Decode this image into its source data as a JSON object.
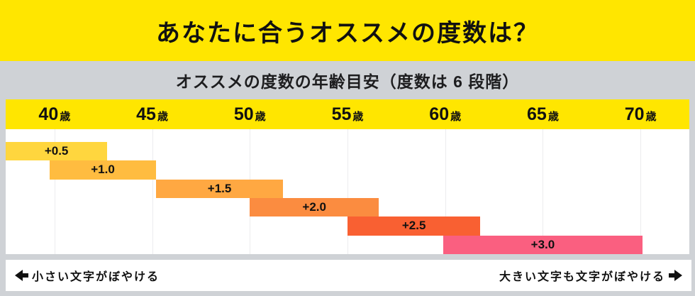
{
  "page": {
    "title": "あなたに合うオススメの度数は？",
    "subtitle": "オススメの度数の年齢目安（度数は 6 段階）",
    "caption_left": "小さい文字がぼやける",
    "caption_right": "大きい文字も文字がぼやける"
  },
  "colors": {
    "accent_yellow": "#ffe600",
    "background_gray": "#cfd2d6",
    "card_white": "#ffffff",
    "text_black": "#111111",
    "gridline": "#ececee"
  },
  "chart_data": {
    "type": "bar",
    "orientation": "horizontal-staggered",
    "title": "オススメの度数の年齢目安（度数は 6 段階）",
    "xlabel": "年齢",
    "x_axis": {
      "unit": "歳",
      "ticks": [
        40,
        45,
        50,
        55,
        60,
        65,
        70
      ],
      "range": [
        37.5,
        72.5
      ],
      "gridlines": true
    },
    "series": [
      {
        "label": "+0.5",
        "start_age": 37.5,
        "end_age": 42.7,
        "color": "#ffd63e"
      },
      {
        "label": "+1.0",
        "start_age": 39.75,
        "end_age": 45.2,
        "color": "#ffbc40"
      },
      {
        "label": "+1.5",
        "start_age": 45.2,
        "end_age": 51.7,
        "color": "#ffa842"
      },
      {
        "label": "+2.0",
        "start_age": 50.0,
        "end_age": 56.6,
        "color": "#fb8c40"
      },
      {
        "label": "+2.5",
        "start_age": 55.0,
        "end_age": 61.8,
        "color": "#f96032"
      },
      {
        "label": "+3.0",
        "start_age": 59.9,
        "end_age": 70.1,
        "color": "#fa5f80"
      }
    ],
    "annotations": {
      "left": "←小さい文字がぼやける",
      "right": "大きい文字も文字がぼやける→"
    }
  }
}
